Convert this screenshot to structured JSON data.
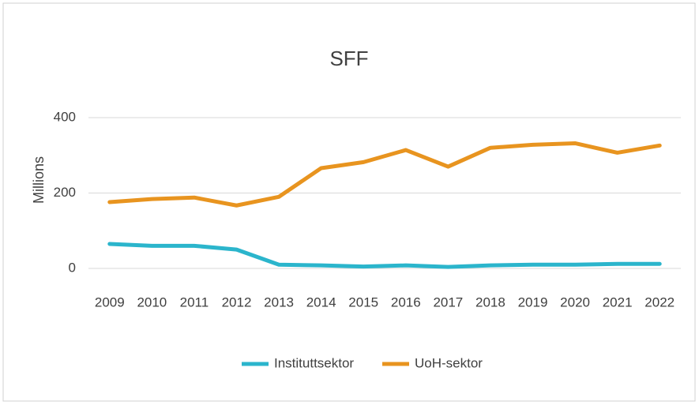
{
  "chart_data": {
    "type": "line",
    "title": "SFF",
    "y_label": "Millions",
    "categories": [
      "2009",
      "2010",
      "2011",
      "2012",
      "2013",
      "2014",
      "2015",
      "2016",
      "2017",
      "2018",
      "2019",
      "2020",
      "2021",
      "2022"
    ],
    "series": [
      {
        "name": "Instituttsektor",
        "color": "#2bb5cc",
        "values": [
          65,
          60,
          60,
          50,
          10,
          8,
          5,
          8,
          4,
          8,
          10,
          10,
          12,
          12
        ]
      },
      {
        "name": "UoH-sektor",
        "color": "#e8941f",
        "values": [
          176,
          184,
          188,
          167,
          190,
          266,
          282,
          314,
          270,
          320,
          328,
          332,
          307,
          326
        ]
      }
    ],
    "ylim": [
      0,
      400
    ],
    "yticks": [
      0,
      200,
      400
    ],
    "grid": true,
    "legend": "bottom"
  }
}
